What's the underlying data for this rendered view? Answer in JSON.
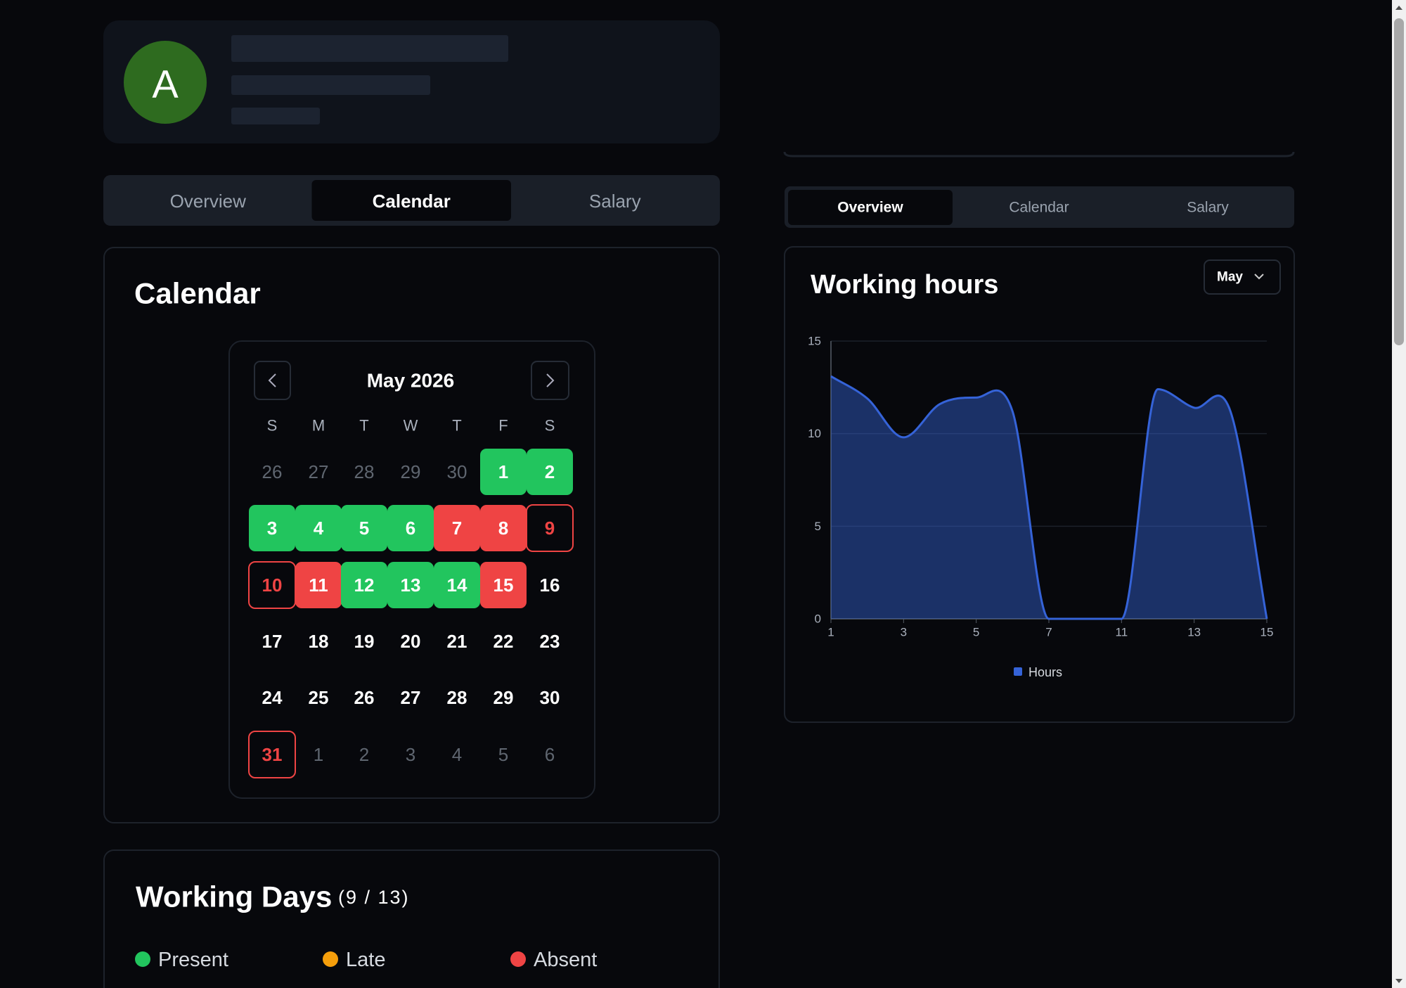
{
  "profile": {
    "avatar": "A"
  },
  "left_tabs": {
    "items": [
      "Overview",
      "Calendar",
      "Salary"
    ],
    "active": 1
  },
  "calendar": {
    "title": "Calendar",
    "month": "May 2026",
    "weekdays": [
      "S",
      "M",
      "T",
      "W",
      "T",
      "F",
      "S"
    ],
    "days": [
      {
        "day": 26,
        "state": "outside"
      },
      {
        "day": 27,
        "state": "outside"
      },
      {
        "day": 28,
        "state": "outside"
      },
      {
        "day": 29,
        "state": "outside"
      },
      {
        "day": 30,
        "state": "outside"
      },
      {
        "day": 1,
        "state": "present"
      },
      {
        "day": 2,
        "state": "present"
      },
      {
        "day": 3,
        "state": "present"
      },
      {
        "day": 4,
        "state": "present"
      },
      {
        "day": 5,
        "state": "present"
      },
      {
        "day": 6,
        "state": "present"
      },
      {
        "day": 7,
        "state": "absent"
      },
      {
        "day": 8,
        "state": "absent"
      },
      {
        "day": 9,
        "state": "marked"
      },
      {
        "day": 10,
        "state": "marked"
      },
      {
        "day": 11,
        "state": "absent"
      },
      {
        "day": 12,
        "state": "present"
      },
      {
        "day": 13,
        "state": "present"
      },
      {
        "day": 14,
        "state": "present"
      },
      {
        "day": 15,
        "state": "absent"
      },
      {
        "day": 16,
        "state": "normal"
      },
      {
        "day": 17,
        "state": "normal"
      },
      {
        "day": 18,
        "state": "normal"
      },
      {
        "day": 19,
        "state": "normal"
      },
      {
        "day": 20,
        "state": "normal"
      },
      {
        "day": 21,
        "state": "normal"
      },
      {
        "day": 22,
        "state": "normal"
      },
      {
        "day": 23,
        "state": "normal"
      },
      {
        "day": 24,
        "state": "normal"
      },
      {
        "day": 25,
        "state": "normal"
      },
      {
        "day": 26,
        "state": "normal"
      },
      {
        "day": 27,
        "state": "normal"
      },
      {
        "day": 28,
        "state": "normal"
      },
      {
        "day": 29,
        "state": "normal"
      },
      {
        "day": 30,
        "state": "normal"
      },
      {
        "day": 31,
        "state": "marked"
      },
      {
        "day": 1,
        "state": "outside"
      },
      {
        "day": 2,
        "state": "outside"
      },
      {
        "day": 3,
        "state": "outside"
      },
      {
        "day": 4,
        "state": "outside"
      },
      {
        "day": 5,
        "state": "outside"
      },
      {
        "day": 6,
        "state": "outside"
      }
    ]
  },
  "working_days": {
    "title": "Working Days",
    "count": "(9 / 13)",
    "legend": [
      {
        "label": "Present",
        "color": "#22c55e"
      },
      {
        "label": "Late",
        "color": "#f59e0b"
      },
      {
        "label": "Absent",
        "color": "#ef4444"
      }
    ]
  },
  "right_tabs": {
    "items": [
      "Overview",
      "Calendar",
      "Salary"
    ],
    "active": 0
  },
  "working_hours": {
    "title": "Working hours",
    "month_select": "May",
    "chart": {
      "type": "area",
      "categories": [
        1,
        null,
        3,
        null,
        5,
        null,
        7,
        null,
        11,
        null,
        13,
        null,
        15
      ],
      "series": [
        {
          "name": "Hours",
          "color": "#3563d8",
          "values": [
            13.1,
            11.9,
            9.8,
            11.6,
            11.95,
            11.2,
            0,
            0,
            0,
            12.4,
            11.4,
            11.2,
            0
          ]
        }
      ],
      "ylim": [
        0,
        15
      ],
      "yticks": [
        0,
        5,
        10,
        15
      ],
      "grid": true
    }
  }
}
